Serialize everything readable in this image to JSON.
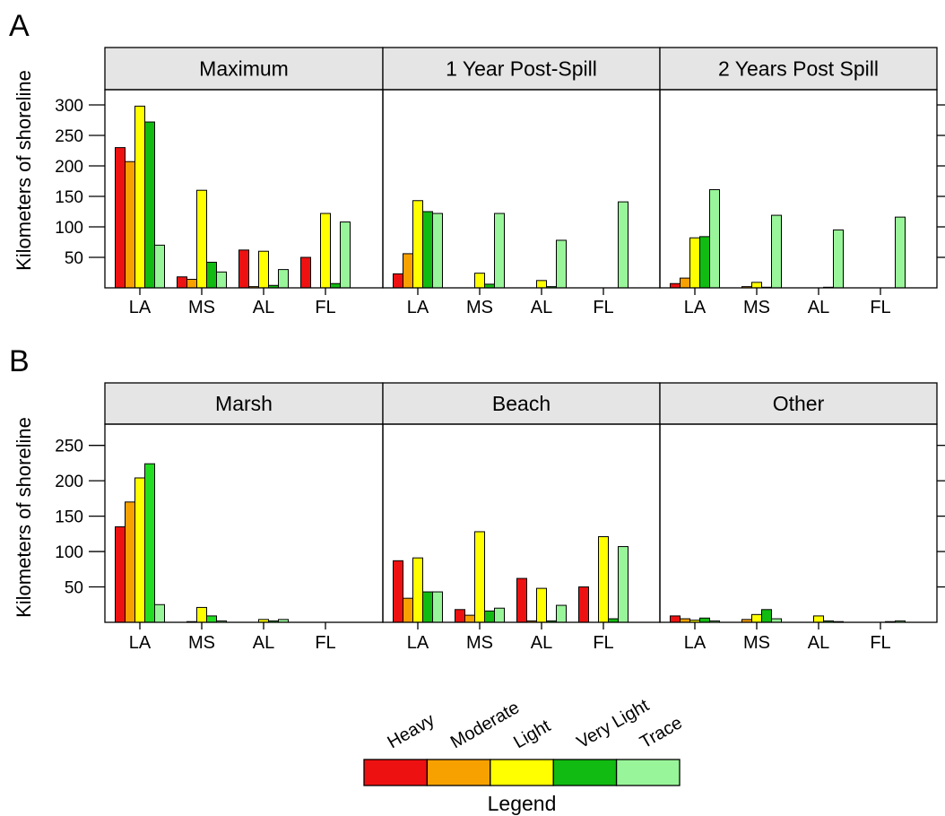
{
  "chart_data": [
    {
      "type": "bar",
      "panel_label": "A",
      "ylabel": "Kilometers of shoreline",
      "yticks": [
        50,
        100,
        150,
        200,
        250,
        300
      ],
      "ylim": [
        0,
        325
      ],
      "categories": [
        "LA",
        "MS",
        "AL",
        "FL"
      ],
      "series_order": [
        "Heavy",
        "Moderate",
        "Light",
        "Very Light",
        "Trace"
      ],
      "facets": [
        {
          "title": "Maximum",
          "series": [
            {
              "name": "Heavy",
              "values": [
                230,
                18,
                62,
                50
              ]
            },
            {
              "name": "Moderate",
              "values": [
                207,
                14,
                2,
                0
              ]
            },
            {
              "name": "Light",
              "values": [
                298,
                160,
                60,
                122
              ]
            },
            {
              "name": "Very Light",
              "values": [
                272,
                42,
                4,
                7
              ]
            },
            {
              "name": "Trace",
              "values": [
                70,
                26,
                30,
                108
              ]
            }
          ]
        },
        {
          "title": "1 Year Post-Spill",
          "series": [
            {
              "name": "Heavy",
              "values": [
                23,
                0,
                0,
                0
              ]
            },
            {
              "name": "Moderate",
              "values": [
                56,
                0,
                0,
                0
              ]
            },
            {
              "name": "Light",
              "values": [
                143,
                24,
                12,
                0
              ]
            },
            {
              "name": "Very Light",
              "values": [
                125,
                6,
                2,
                0
              ]
            },
            {
              "name": "Trace",
              "values": [
                122,
                122,
                78,
                141
              ]
            }
          ]
        },
        {
          "title": "2 Years Post Spill",
          "series": [
            {
              "name": "Heavy",
              "values": [
                7,
                0,
                0,
                0
              ]
            },
            {
              "name": "Moderate",
              "values": [
                16,
                2,
                0,
                0
              ]
            },
            {
              "name": "Light",
              "values": [
                82,
                9,
                0,
                0
              ]
            },
            {
              "name": "Very Light",
              "values": [
                84,
                1,
                1,
                0
              ]
            },
            {
              "name": "Trace",
              "values": [
                161,
                119,
                95,
                116
              ]
            }
          ]
        }
      ]
    },
    {
      "type": "bar",
      "panel_label": "B",
      "ylabel": "Kilometers of shoreline",
      "yticks": [
        50,
        100,
        150,
        200,
        250
      ],
      "ylim": [
        0,
        280
      ],
      "categories": [
        "LA",
        "MS",
        "AL",
        "FL"
      ],
      "series_order": [
        "Heavy",
        "Moderate",
        "Light",
        "Very Light",
        "Trace"
      ],
      "facets": [
        {
          "title": "Marsh",
          "series": [
            {
              "name": "Heavy",
              "values": [
                135,
                0,
                0,
                0
              ]
            },
            {
              "name": "Moderate",
              "values": [
                170,
                1,
                0,
                0
              ]
            },
            {
              "name": "Light",
              "values": [
                204,
                21,
                4,
                0
              ]
            },
            {
              "name": "Very Light",
              "values": [
                224,
                9,
                2,
                0
              ]
            },
            {
              "name": "Trace",
              "values": [
                25,
                2,
                4,
                0
              ]
            }
          ]
        },
        {
          "title": "Beach",
          "series": [
            {
              "name": "Heavy",
              "values": [
                87,
                18,
                62,
                50
              ]
            },
            {
              "name": "Moderate",
              "values": [
                34,
                10,
                2,
                0
              ]
            },
            {
              "name": "Light",
              "values": [
                91,
                128,
                48,
                121
              ]
            },
            {
              "name": "Very Light",
              "values": [
                43,
                16,
                2,
                5
              ]
            },
            {
              "name": "Trace",
              "values": [
                43,
                20,
                24,
                107
              ]
            }
          ]
        },
        {
          "title": "Other",
          "series": [
            {
              "name": "Heavy",
              "values": [
                9,
                0,
                0,
                0
              ]
            },
            {
              "name": "Moderate",
              "values": [
                5,
                4,
                0,
                0
              ]
            },
            {
              "name": "Light",
              "values": [
                3,
                11,
                9,
                0
              ]
            },
            {
              "name": "Very Light",
              "values": [
                6,
                18,
                2,
                1
              ]
            },
            {
              "name": "Trace",
              "values": [
                2,
                5,
                1,
                2
              ]
            }
          ]
        }
      ]
    }
  ],
  "colors": {
    "Heavy": "#ee1111",
    "Moderate": "#f7a100",
    "Light": "#ffff00",
    "Very Light": "#11bb11",
    "Trace": "#99f599",
    "Very Light (Marsh)": "#22dd22",
    "strip": "#e5e5e5"
  },
  "legend": {
    "title": "Legend",
    "labels": [
      "Heavy",
      "Moderate",
      "Light",
      "Very Light",
      "Trace"
    ]
  }
}
